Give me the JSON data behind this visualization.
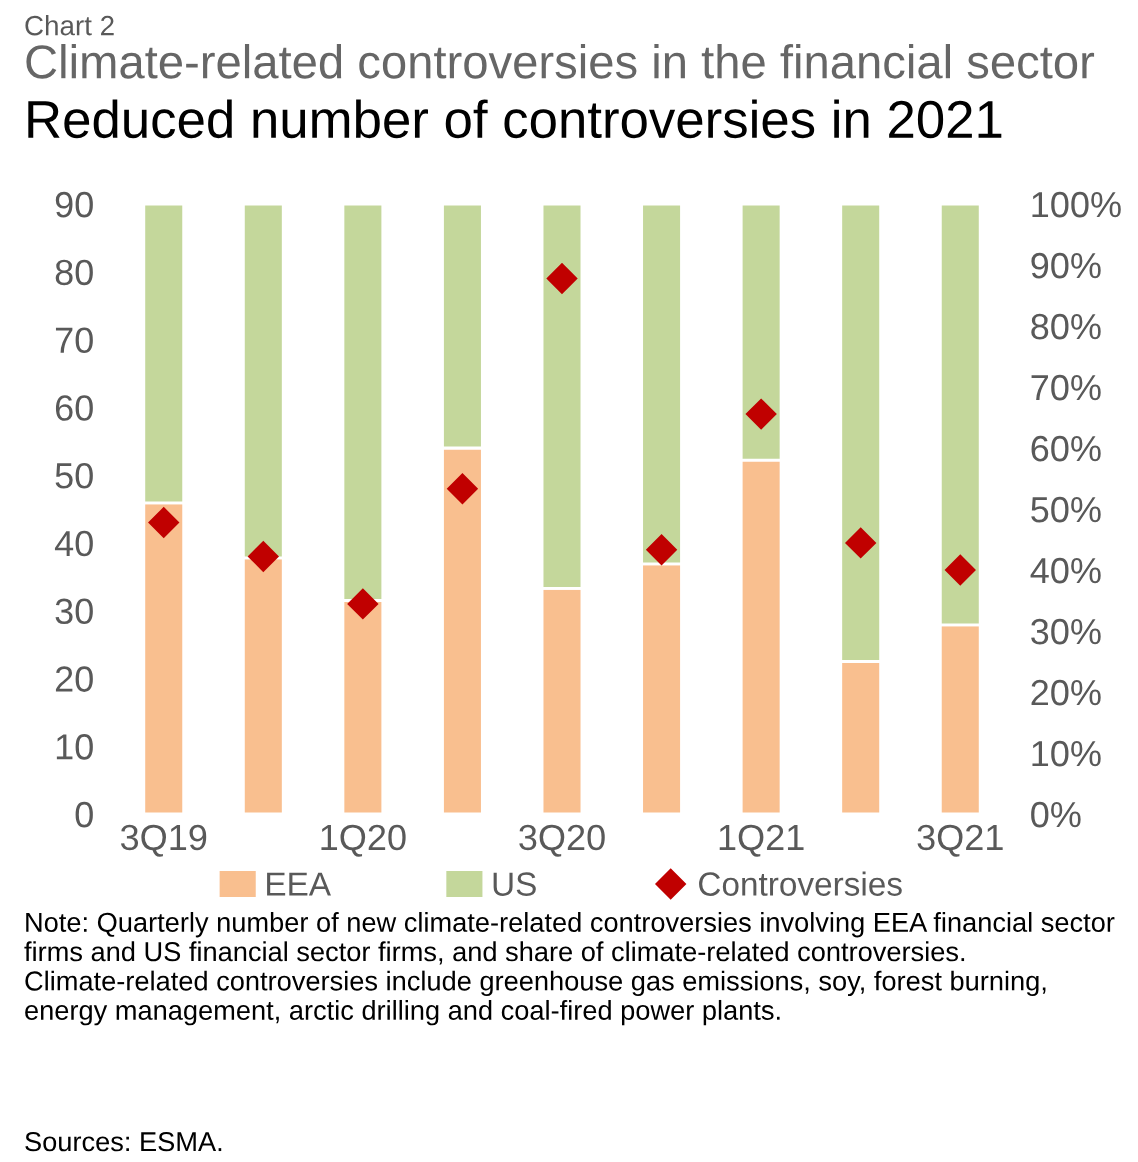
{
  "chart_data": {
    "type": "bar",
    "stacked": true,
    "title": "Climate-related controversies in the financial sector",
    "subtitle": "Reduced number of controversies in 2021",
    "categories": [
      "3Q19",
      null,
      "1Q20",
      null,
      "3Q20",
      null,
      "1Q21",
      null,
      "3Q21"
    ],
    "series": [
      {
        "name": "EEA",
        "axis": "y2",
        "color": "#f9bf8f",
        "values": [
          51,
          42,
          35,
          60,
          37,
          41,
          58,
          25,
          31
        ]
      },
      {
        "name": "US",
        "axis": "y2",
        "color": "#c4d79b",
        "values": [
          49,
          58,
          65,
          40,
          63,
          59,
          42,
          75,
          69
        ]
      },
      {
        "name": "Controversies",
        "type": "scatter",
        "marker": "diamond",
        "color": "#c00000",
        "values": [
          43,
          38,
          31,
          48,
          79,
          39,
          59,
          40,
          36
        ]
      }
    ],
    "ylim": [
      0,
      90
    ],
    "yticks": [
      0,
      10,
      20,
      30,
      40,
      50,
      60,
      70,
      80,
      90
    ],
    "y2lim": [
      0,
      100
    ],
    "y2ticks": [
      {
        "value": 0,
        "label": "0%"
      },
      {
        "value": 10,
        "label": "10%"
      },
      {
        "value": 20,
        "label": "20%"
      },
      {
        "value": 30,
        "label": "30%"
      },
      {
        "value": 40,
        "label": "40%"
      },
      {
        "value": 50,
        "label": "50%"
      },
      {
        "value": 60,
        "label": "60%"
      },
      {
        "value": 70,
        "label": "70%"
      },
      {
        "value": 80,
        "label": "80%"
      },
      {
        "value": 90,
        "label": "90%"
      },
      {
        "value": 100,
        "label": "100%"
      }
    ],
    "legend": "bottom",
    "grid": false,
    "annotations": [
      "Chart 2",
      "Note: Quarterly number of new climate-related controversies involving EEA financial sector firms and US financial sector firms, and share of climate-related controversies. Climate-related controversies include greenhouse gas emissions, soy, forest burning, energy management, arctic drilling and coal-fired power plants.",
      "Sources: ESMA."
    ]
  }
}
